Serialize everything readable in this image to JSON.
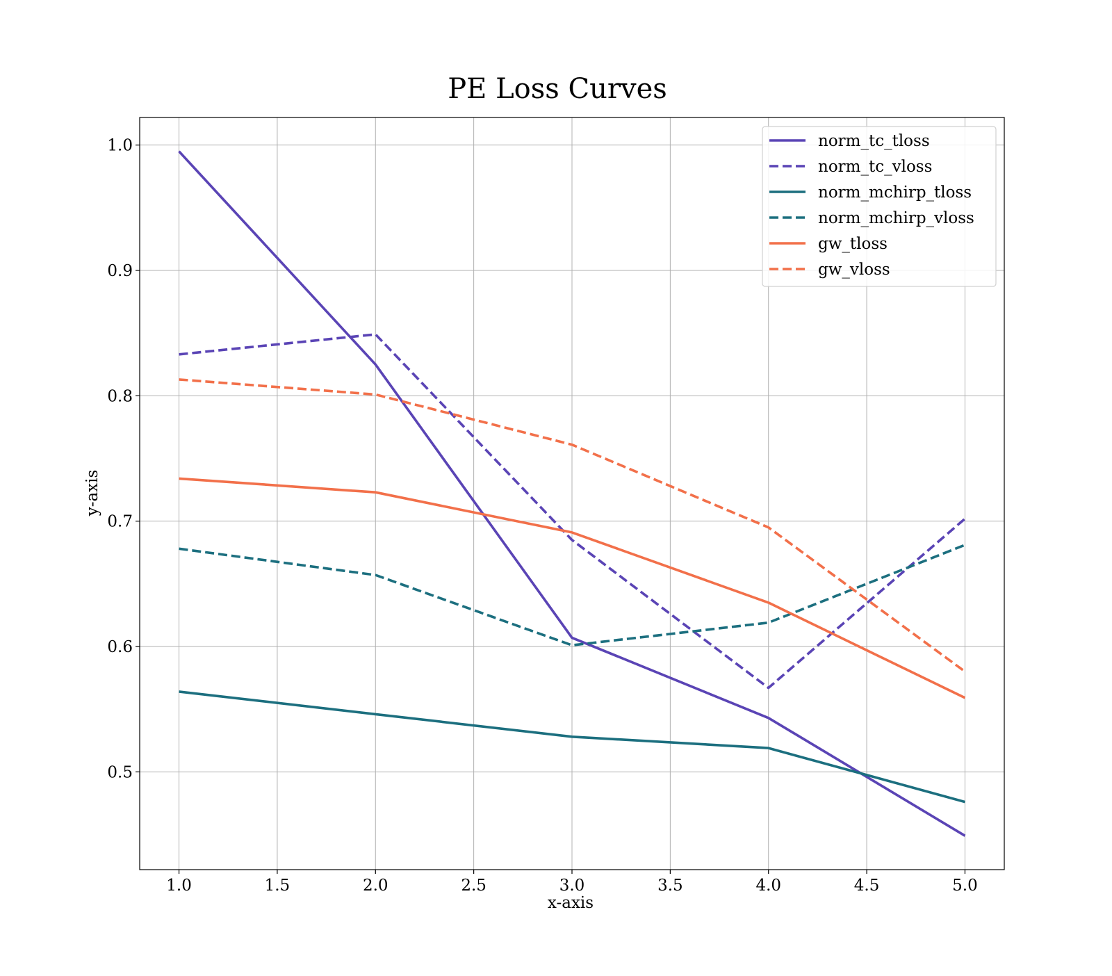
{
  "chart_data": {
    "type": "line",
    "title": "PE Loss Curves",
    "xlabel": "x-axis",
    "ylabel": "y-axis",
    "x": [
      1.0,
      2.0,
      3.0,
      4.0,
      5.0
    ],
    "xlim": [
      0.8,
      5.2
    ],
    "ylim": [
      0.422,
      1.022
    ],
    "xticks": [
      "1.0",
      "1.5",
      "2.0",
      "2.5",
      "3.0",
      "3.5",
      "4.0",
      "4.5",
      "5.0"
    ],
    "yticks": [
      "0.5",
      "0.6",
      "0.7",
      "0.8",
      "0.9",
      "1.0"
    ],
    "grid": true,
    "legend_position": "top-right",
    "series": [
      {
        "name": "norm_tc_tloss",
        "color": "#5a44b5",
        "style": "solid",
        "values": [
          0.995,
          0.825,
          0.607,
          0.543,
          0.449
        ]
      },
      {
        "name": "norm_tc_vloss",
        "color": "#5a44b5",
        "style": "dashed",
        "values": [
          0.833,
          0.849,
          0.685,
          0.567,
          0.702
        ]
      },
      {
        "name": "norm_mchirp_tloss",
        "color": "#1c6f7f",
        "style": "solid",
        "values": [
          0.564,
          0.546,
          0.528,
          0.519,
          0.476
        ]
      },
      {
        "name": "norm_mchirp_vloss",
        "color": "#1c6f7f",
        "style": "dashed",
        "values": [
          0.678,
          0.657,
          0.601,
          0.619,
          0.681
        ]
      },
      {
        "name": "gw_tloss",
        "color": "#f2704a",
        "style": "solid",
        "values": [
          0.734,
          0.723,
          0.691,
          0.635,
          0.559
        ]
      },
      {
        "name": "gw_vloss",
        "color": "#f2704a",
        "style": "dashed",
        "values": [
          0.813,
          0.801,
          0.761,
          0.695,
          0.58
        ]
      }
    ]
  }
}
